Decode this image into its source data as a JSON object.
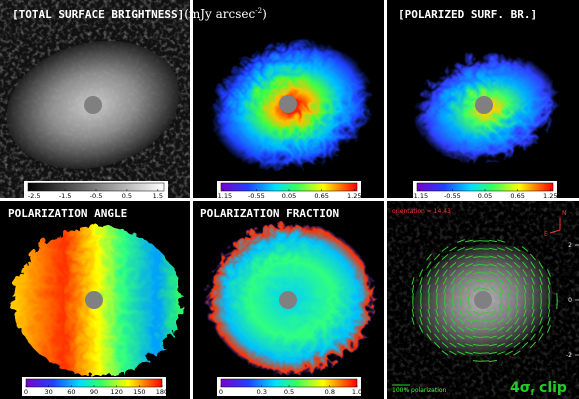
{
  "panels": [
    {
      "title": "[TOTAL SURFACE BRIGHTNESS]",
      "unit": "(mJy arcsec",
      "unit_exponent": "-2",
      "unit_close": ")",
      "colorbar": {
        "lim": [
          -2.7,
          1.7
        ],
        "ticks": [
          -2.5,
          -1.5,
          -0.5,
          0.5,
          1.5
        ]
      }
    },
    {
      "colorbar": {
        "lim": [
          -1.2,
          1.3
        ],
        "ticks": [
          -1.15,
          -0.55,
          0.05,
          0.65,
          1.25
        ]
      }
    },
    {
      "title": "[POLARIZED SURF. BR.]",
      "colorbar": {
        "lim": [
          -1.2,
          1.3
        ],
        "ticks": [
          -1.15,
          -0.55,
          0.05,
          0.65,
          1.25
        ]
      }
    },
    {
      "title": "POLARIZATION ANGLE",
      "colorbar": {
        "lim": [
          0,
          180
        ],
        "ticks": [
          0,
          30,
          60,
          90,
          120,
          150,
          180
        ]
      }
    },
    {
      "title": "POLARIZATION FRACTION",
      "colorbar": {
        "lim": [
          0,
          1
        ],
        "ticks": [
          0,
          0.3,
          0.5,
          0.8,
          {
            "value": 1,
            "label": "1.0"
          }
        ]
      }
    },
    {
      "orientation": "orientation = 14.43",
      "scale_label": "100% polarization",
      "clip_label": "4σ",
      "clip_sub": "f",
      "clip_tail": " clip",
      "compass": [
        "N",
        "E"
      ],
      "ylim": [
        -3.6,
        3.6
      ],
      "yticks": [
        2,
        0,
        -2
      ]
    }
  ]
}
